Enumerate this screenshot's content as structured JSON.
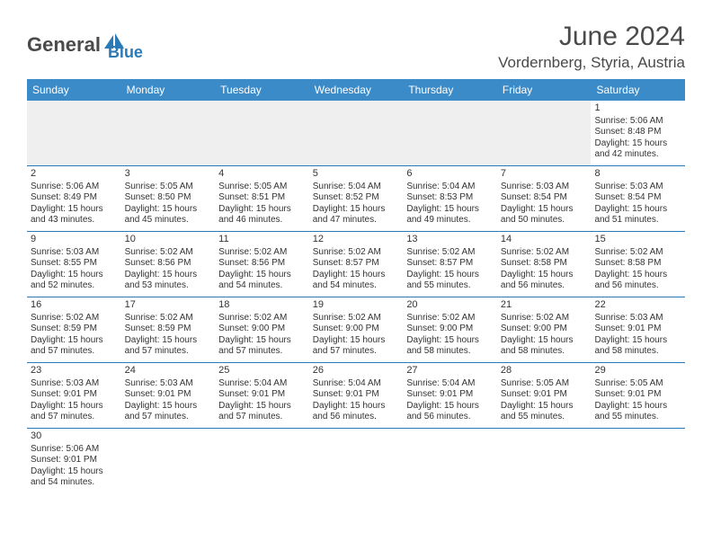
{
  "logo": {
    "text_general": "General",
    "text_blue": "Blue",
    "icon_color": "#2a7ab8"
  },
  "header": {
    "month_title": "June 2024",
    "location": "Vordernberg, Styria, Austria"
  },
  "colors": {
    "header_bg": "#3b8bc8",
    "header_text": "#ffffff",
    "border": "#2a7ab8",
    "empty_bg": "#efefef",
    "text": "#333333"
  },
  "weekdays": [
    "Sunday",
    "Monday",
    "Tuesday",
    "Wednesday",
    "Thursday",
    "Friday",
    "Saturday"
  ],
  "weeks": [
    [
      null,
      null,
      null,
      null,
      null,
      null,
      {
        "day": "1",
        "sunrise": "Sunrise: 5:06 AM",
        "sunset": "Sunset: 8:48 PM",
        "daylight1": "Daylight: 15 hours",
        "daylight2": "and 42 minutes."
      }
    ],
    [
      {
        "day": "2",
        "sunrise": "Sunrise: 5:06 AM",
        "sunset": "Sunset: 8:49 PM",
        "daylight1": "Daylight: 15 hours",
        "daylight2": "and 43 minutes."
      },
      {
        "day": "3",
        "sunrise": "Sunrise: 5:05 AM",
        "sunset": "Sunset: 8:50 PM",
        "daylight1": "Daylight: 15 hours",
        "daylight2": "and 45 minutes."
      },
      {
        "day": "4",
        "sunrise": "Sunrise: 5:05 AM",
        "sunset": "Sunset: 8:51 PM",
        "daylight1": "Daylight: 15 hours",
        "daylight2": "and 46 minutes."
      },
      {
        "day": "5",
        "sunrise": "Sunrise: 5:04 AM",
        "sunset": "Sunset: 8:52 PM",
        "daylight1": "Daylight: 15 hours",
        "daylight2": "and 47 minutes."
      },
      {
        "day": "6",
        "sunrise": "Sunrise: 5:04 AM",
        "sunset": "Sunset: 8:53 PM",
        "daylight1": "Daylight: 15 hours",
        "daylight2": "and 49 minutes."
      },
      {
        "day": "7",
        "sunrise": "Sunrise: 5:03 AM",
        "sunset": "Sunset: 8:54 PM",
        "daylight1": "Daylight: 15 hours",
        "daylight2": "and 50 minutes."
      },
      {
        "day": "8",
        "sunrise": "Sunrise: 5:03 AM",
        "sunset": "Sunset: 8:54 PM",
        "daylight1": "Daylight: 15 hours",
        "daylight2": "and 51 minutes."
      }
    ],
    [
      {
        "day": "9",
        "sunrise": "Sunrise: 5:03 AM",
        "sunset": "Sunset: 8:55 PM",
        "daylight1": "Daylight: 15 hours",
        "daylight2": "and 52 minutes."
      },
      {
        "day": "10",
        "sunrise": "Sunrise: 5:02 AM",
        "sunset": "Sunset: 8:56 PM",
        "daylight1": "Daylight: 15 hours",
        "daylight2": "and 53 minutes."
      },
      {
        "day": "11",
        "sunrise": "Sunrise: 5:02 AM",
        "sunset": "Sunset: 8:56 PM",
        "daylight1": "Daylight: 15 hours",
        "daylight2": "and 54 minutes."
      },
      {
        "day": "12",
        "sunrise": "Sunrise: 5:02 AM",
        "sunset": "Sunset: 8:57 PM",
        "daylight1": "Daylight: 15 hours",
        "daylight2": "and 54 minutes."
      },
      {
        "day": "13",
        "sunrise": "Sunrise: 5:02 AM",
        "sunset": "Sunset: 8:57 PM",
        "daylight1": "Daylight: 15 hours",
        "daylight2": "and 55 minutes."
      },
      {
        "day": "14",
        "sunrise": "Sunrise: 5:02 AM",
        "sunset": "Sunset: 8:58 PM",
        "daylight1": "Daylight: 15 hours",
        "daylight2": "and 56 minutes."
      },
      {
        "day": "15",
        "sunrise": "Sunrise: 5:02 AM",
        "sunset": "Sunset: 8:58 PM",
        "daylight1": "Daylight: 15 hours",
        "daylight2": "and 56 minutes."
      }
    ],
    [
      {
        "day": "16",
        "sunrise": "Sunrise: 5:02 AM",
        "sunset": "Sunset: 8:59 PM",
        "daylight1": "Daylight: 15 hours",
        "daylight2": "and 57 minutes."
      },
      {
        "day": "17",
        "sunrise": "Sunrise: 5:02 AM",
        "sunset": "Sunset: 8:59 PM",
        "daylight1": "Daylight: 15 hours",
        "daylight2": "and 57 minutes."
      },
      {
        "day": "18",
        "sunrise": "Sunrise: 5:02 AM",
        "sunset": "Sunset: 9:00 PM",
        "daylight1": "Daylight: 15 hours",
        "daylight2": "and 57 minutes."
      },
      {
        "day": "19",
        "sunrise": "Sunrise: 5:02 AM",
        "sunset": "Sunset: 9:00 PM",
        "daylight1": "Daylight: 15 hours",
        "daylight2": "and 57 minutes."
      },
      {
        "day": "20",
        "sunrise": "Sunrise: 5:02 AM",
        "sunset": "Sunset: 9:00 PM",
        "daylight1": "Daylight: 15 hours",
        "daylight2": "and 58 minutes."
      },
      {
        "day": "21",
        "sunrise": "Sunrise: 5:02 AM",
        "sunset": "Sunset: 9:00 PM",
        "daylight1": "Daylight: 15 hours",
        "daylight2": "and 58 minutes."
      },
      {
        "day": "22",
        "sunrise": "Sunrise: 5:03 AM",
        "sunset": "Sunset: 9:01 PM",
        "daylight1": "Daylight: 15 hours",
        "daylight2": "and 58 minutes."
      }
    ],
    [
      {
        "day": "23",
        "sunrise": "Sunrise: 5:03 AM",
        "sunset": "Sunset: 9:01 PM",
        "daylight1": "Daylight: 15 hours",
        "daylight2": "and 57 minutes."
      },
      {
        "day": "24",
        "sunrise": "Sunrise: 5:03 AM",
        "sunset": "Sunset: 9:01 PM",
        "daylight1": "Daylight: 15 hours",
        "daylight2": "and 57 minutes."
      },
      {
        "day": "25",
        "sunrise": "Sunrise: 5:04 AM",
        "sunset": "Sunset: 9:01 PM",
        "daylight1": "Daylight: 15 hours",
        "daylight2": "and 57 minutes."
      },
      {
        "day": "26",
        "sunrise": "Sunrise: 5:04 AM",
        "sunset": "Sunset: 9:01 PM",
        "daylight1": "Daylight: 15 hours",
        "daylight2": "and 56 minutes."
      },
      {
        "day": "27",
        "sunrise": "Sunrise: 5:04 AM",
        "sunset": "Sunset: 9:01 PM",
        "daylight1": "Daylight: 15 hours",
        "daylight2": "and 56 minutes."
      },
      {
        "day": "28",
        "sunrise": "Sunrise: 5:05 AM",
        "sunset": "Sunset: 9:01 PM",
        "daylight1": "Daylight: 15 hours",
        "daylight2": "and 55 minutes."
      },
      {
        "day": "29",
        "sunrise": "Sunrise: 5:05 AM",
        "sunset": "Sunset: 9:01 PM",
        "daylight1": "Daylight: 15 hours",
        "daylight2": "and 55 minutes."
      }
    ],
    [
      {
        "day": "30",
        "sunrise": "Sunrise: 5:06 AM",
        "sunset": "Sunset: 9:01 PM",
        "daylight1": "Daylight: 15 hours",
        "daylight2": "and 54 minutes."
      },
      null,
      null,
      null,
      null,
      null,
      null
    ]
  ]
}
